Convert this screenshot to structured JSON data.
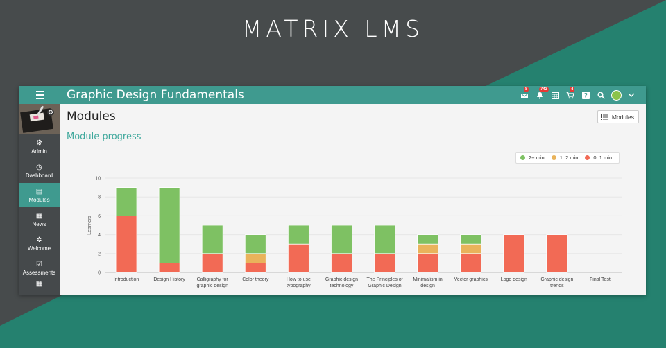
{
  "brand": "MATRIX LMS",
  "colors": {
    "teal": "#3f9a8f",
    "dark": "#474b4c",
    "accent": "#3fa89c"
  },
  "topbar": {
    "title": "Graphic Design Fundamentals",
    "menu_icon": "hamburger-icon",
    "icons": [
      {
        "name": "messages-icon",
        "badge": "8"
      },
      {
        "name": "notifications-icon",
        "badge": "743"
      },
      {
        "name": "calendar-icon",
        "badge": ""
      },
      {
        "name": "cart-icon",
        "badge": "4"
      },
      {
        "name": "help-icon",
        "badge": ""
      },
      {
        "name": "search-icon",
        "badge": ""
      },
      {
        "name": "user-avatar-icon",
        "badge": ""
      },
      {
        "name": "chevron-down-icon",
        "badge": ""
      }
    ]
  },
  "sidebar": {
    "items": [
      {
        "label": "Admin",
        "icon": "gear-icon",
        "active": false
      },
      {
        "label": "Dashboard",
        "icon": "dashboard-icon",
        "active": false
      },
      {
        "label": "Modules",
        "icon": "modules-icon",
        "active": true
      },
      {
        "label": "News",
        "icon": "news-icon",
        "active": false
      },
      {
        "label": "Welcome",
        "icon": "welcome-icon",
        "active": false
      },
      {
        "label": "Assessments",
        "icon": "assessments-icon",
        "active": false
      }
    ]
  },
  "main": {
    "title": "Modules",
    "modules_button": "Modules",
    "section_title": "Module progress"
  },
  "chart_data": {
    "type": "bar",
    "stacked": true,
    "ylabel": "Learners",
    "ylim": [
      0,
      10
    ],
    "yticks": [
      0,
      2,
      4,
      6,
      8,
      10
    ],
    "grid": true,
    "legend_position": "top-right",
    "categories": [
      "Introduction",
      "Design History",
      "Calligraphy for graphic design",
      "Color theory",
      "How to use typography",
      "Graphic design technology",
      "The Principles of Graphic Design",
      "Minimalism in design",
      "Vector graphics",
      "Logo design",
      "Graphic design trends",
      "Final Test"
    ],
    "category_lines": [
      [
        "Introduction"
      ],
      [
        "Design History"
      ],
      [
        "Calligraphy for",
        "graphic design"
      ],
      [
        "Color theory"
      ],
      [
        "How to use",
        "typography"
      ],
      [
        "Graphic design",
        "technology"
      ],
      [
        "The Principles of",
        "Graphic Design"
      ],
      [
        "Minimalism in",
        "design"
      ],
      [
        "Vector graphics"
      ],
      [
        "Logo design"
      ],
      [
        "Graphic design",
        "trends"
      ],
      [
        "Final Test"
      ]
    ],
    "series": [
      {
        "name": "0..1 min",
        "color": "#f26a55",
        "values": [
          6,
          1,
          2,
          1,
          3,
          2,
          2,
          2,
          2,
          4,
          4,
          0
        ]
      },
      {
        "name": "1..2 min",
        "color": "#e9b35b",
        "values": [
          0,
          0,
          0,
          1,
          0,
          0,
          0,
          1,
          1,
          0,
          0,
          0
        ]
      },
      {
        "name": "2+ min",
        "color": "#7ec163",
        "values": [
          3,
          8,
          3,
          2,
          2,
          3,
          3,
          1,
          1,
          0,
          0,
          0
        ]
      }
    ],
    "legend_order": [
      "2+ min",
      "1..2 min",
      "0..1 min"
    ]
  }
}
